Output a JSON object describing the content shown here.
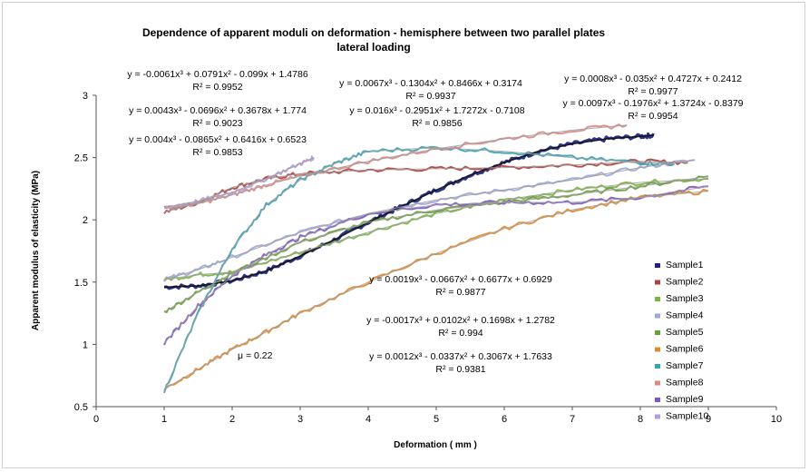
{
  "chart_data": {
    "type": "scatter",
    "title": "Dependence of apparent moduli on deformation - hemisphere between two parallel plates",
    "subtitle": "lateral loading",
    "xlabel": "Deformation ( mm )",
    "ylabel": "Apparent modulus of elasticity (MPa)",
    "xlim": [
      0,
      10
    ],
    "ylim": [
      0.5,
      3
    ],
    "xticks": [
      "0",
      "1",
      "2",
      "3",
      "4",
      "5",
      "6",
      "7",
      "8",
      "9",
      "10"
    ],
    "yticks": [
      "0.5",
      "1",
      "1.5",
      "2",
      "2.5",
      "3"
    ],
    "grid": false,
    "legend_position": "right",
    "note": "μ = 0.22",
    "series": [
      {
        "name": "Sample1",
        "color": "#1a237e",
        "x": [
          1.0,
          1.5,
          2.0,
          2.5,
          3.0,
          3.5,
          4.0,
          4.5,
          5.0,
          5.5,
          6.0,
          6.5,
          7.0,
          7.5,
          8.0,
          8.2
        ],
        "y": [
          1.46,
          1.47,
          1.51,
          1.59,
          1.71,
          1.84,
          1.98,
          2.11,
          2.24,
          2.36,
          2.46,
          2.55,
          2.61,
          2.65,
          2.67,
          2.68
        ]
      },
      {
        "name": "Sample2",
        "color": "#b0413e",
        "x": [
          1.0,
          1.5,
          2.0,
          2.5,
          3.0,
          4.0,
          5.0,
          6.0,
          7.0,
          8.0,
          8.7
        ],
        "y": [
          2.06,
          2.14,
          2.26,
          2.33,
          2.37,
          2.4,
          2.41,
          2.42,
          2.44,
          2.47,
          2.46
        ]
      },
      {
        "name": "Sample3",
        "color": "#7cb342",
        "x": [
          1.0,
          1.5,
          2.0,
          3.0,
          4.0,
          5.0,
          6.0,
          7.0,
          8.0,
          9.0
        ],
        "y": [
          1.52,
          1.56,
          1.58,
          1.74,
          1.9,
          2.05,
          2.16,
          2.24,
          2.3,
          2.33
        ]
      },
      {
        "name": "Sample4",
        "color": "#9fa8da",
        "x": [
          1.0,
          1.5,
          2.0,
          3.0,
          4.0,
          5.0,
          6.0,
          7.0,
          8.0,
          8.8
        ],
        "y": [
          1.52,
          1.6,
          1.7,
          1.9,
          2.05,
          2.16,
          2.24,
          2.32,
          2.42,
          2.48
        ]
      },
      {
        "name": "Sample5",
        "color": "#6a9e3c",
        "x": [
          1.0,
          1.5,
          2.0,
          3.0,
          4.0,
          5.0,
          6.0,
          7.0,
          8.0,
          9.0
        ],
        "y": [
          1.26,
          1.42,
          1.57,
          1.82,
          1.98,
          2.08,
          2.14,
          2.2,
          2.27,
          2.35
        ]
      },
      {
        "name": "Sample6",
        "color": "#e08a2e",
        "x": [
          1.0,
          1.5,
          2.0,
          2.5,
          3.0,
          4.0,
          5.0,
          6.0,
          7.0,
          8.0,
          9.0
        ],
        "y": [
          0.64,
          0.8,
          0.96,
          1.1,
          1.25,
          1.5,
          1.73,
          1.93,
          2.08,
          2.18,
          2.23
        ]
      },
      {
        "name": "Sample7",
        "color": "#36a3b5",
        "x": [
          1.0,
          1.5,
          2.0,
          2.5,
          3.0,
          3.5,
          4.0,
          5.0,
          6.0,
          7.0,
          8.0,
          8.5
        ],
        "y": [
          0.62,
          1.25,
          1.77,
          2.12,
          2.32,
          2.45,
          2.55,
          2.58,
          2.55,
          2.5,
          2.46,
          2.45
        ]
      },
      {
        "name": "Sample8",
        "color": "#d98a86",
        "x": [
          1.0,
          1.5,
          2.0,
          2.5,
          3.0,
          4.0,
          5.0,
          6.0,
          7.0,
          7.8
        ],
        "y": [
          2.09,
          2.13,
          2.2,
          2.28,
          2.35,
          2.47,
          2.57,
          2.65,
          2.72,
          2.76
        ]
      },
      {
        "name": "Sample9",
        "color": "#7e57c2",
        "x": [
          1.0,
          1.5,
          2.0,
          2.5,
          3.0,
          4.0,
          5.0,
          6.0,
          7.0,
          8.0,
          9.0
        ],
        "y": [
          1.01,
          1.31,
          1.55,
          1.72,
          1.86,
          2.05,
          2.12,
          2.14,
          2.14,
          2.18,
          2.27
        ]
      },
      {
        "name": "Sample10",
        "color": "#b39ddb",
        "x": [
          1.0,
          1.5,
          2.0,
          2.5,
          3.0,
          3.2
        ],
        "y": [
          2.1,
          2.15,
          2.22,
          2.33,
          2.45,
          2.5
        ]
      }
    ],
    "trendline_color": "#9e9e9e",
    "annotations": [
      {
        "equation": "y = -0.0061x³ + 0.0791x² - 0.099x + 1.4786",
        "r2": "R² = 0.9952"
      },
      {
        "equation": "y = 0.0043x³ - 0.0696x² + 0.3678x + 1.774",
        "r2": "R² = 0.9023"
      },
      {
        "equation": "y = 0.004x³ - 0.0865x² + 0.6416x + 0.6523",
        "r2": "R² = 0.9853"
      },
      {
        "equation": "y = 0.0067x³ - 0.1304x² + 0.8466x + 0.3174",
        "r2": "R² = 0.9937"
      },
      {
        "equation": "y = 0.016x³ - 0.2951x² + 1.7272x - 0.7108",
        "r2": "R² = 0.9856"
      },
      {
        "equation": "y = 0.0008x³ - 0.035x² + 0.4727x + 0.2412",
        "r2": "R² = 0.9977"
      },
      {
        "equation": "y = 0.0097x³ - 0.1976x² + 1.3724x - 0.8379",
        "r2": "R² = 0.9954"
      },
      {
        "equation": "y = 0.0019x³ - 0.0667x² + 0.6677x + 0.6929",
        "r2": "R² = 0.9877"
      },
      {
        "equation": "y = -0.0017x³ + 0.0102x² + 0.1698x + 1.2782",
        "r2": "R² = 0.994"
      },
      {
        "equation": "y = 0.0012x³ - 0.0337x² + 0.3067x + 1.7633",
        "r2": "R² = 0.9381"
      }
    ]
  }
}
